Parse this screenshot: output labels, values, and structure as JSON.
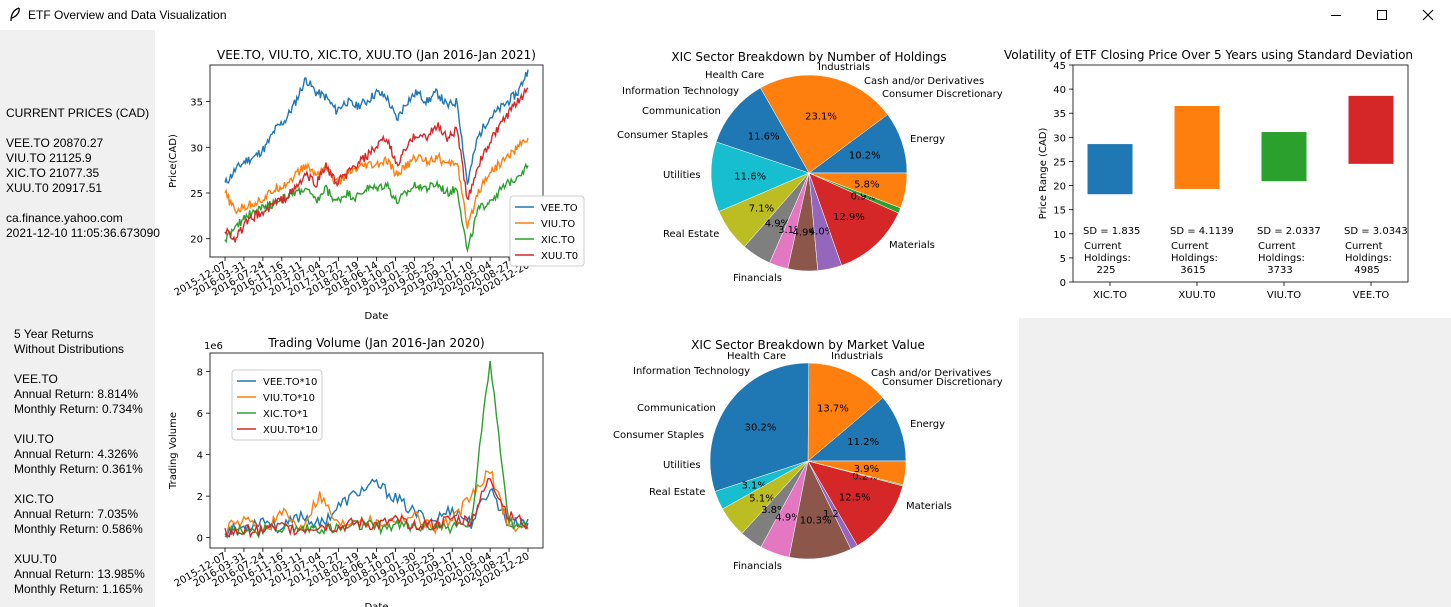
{
  "window": {
    "title": "ETF Overview and Data Visualization",
    "icons": [
      "feather-icon",
      "minimize-icon",
      "maximize-icon",
      "close-icon"
    ]
  },
  "sidebar": {
    "prices_header": "CURRENT PRICES (CAD)",
    "prices": [
      "VEE.TO 20870.27",
      "VIU.TO 21125.9",
      "XIC.TO 21077.35",
      "XUU.T0 20917.51"
    ],
    "source": "ca.finance.yahoo.com",
    "timestamp": "2021-12-10 11:05:36.673090",
    "returns_header_1": "5 Year Returns",
    "returns_header_2": "Without Distributions",
    "returns": [
      {
        "name": "VEE.TO",
        "annual": "Annual Return: 8.814%",
        "monthly": "Monthly Return: 0.734%"
      },
      {
        "name": "VIU.TO",
        "annual": "Annual Return: 4.326%",
        "monthly": "Monthly Return: 0.361%"
      },
      {
        "name": "XIC.TO",
        "annual": "Annual Return: 7.035%",
        "monthly": "Monthly Return: 0.586%"
      },
      {
        "name": "XUU.T0",
        "annual": "Annual Return: 13.985%",
        "monthly": "Monthly Return: 1.165%"
      }
    ]
  },
  "colors": {
    "blue": "#1f77b4",
    "orange": "#ff7f0e",
    "green": "#2ca02c",
    "red": "#d62728",
    "purple": "#9467bd",
    "brown": "#8c564b",
    "pink": "#e377c2",
    "gray": "#7f7f7f",
    "olive": "#bcbd22",
    "cyan": "#17becf"
  },
  "chart_data": [
    {
      "type": "line",
      "title": "VEE.TO, VIU.TO, XIC.TO, XUU.TO (Jan 2016-Jan 2021)",
      "xlabel": "Date",
      "ylabel": "Price(CAD)",
      "ylim": [
        18,
        39
      ],
      "yticks": [
        20,
        25,
        30,
        35
      ],
      "xticks": [
        "2015-12-07",
        "2016-03-31",
        "2016-07-24",
        "2016-11-16",
        "2017-03-11",
        "2017-07-04",
        "2017-10-27",
        "2018-02-19",
        "2018-06-14",
        "2018-10-07",
        "2019-01-30",
        "2019-05-25",
        "2019-09-17",
        "2020-01-10",
        "2020-05-04",
        "2020-08-27",
        "2020-12-20"
      ],
      "legend": "lower-right",
      "series": [
        {
          "name": "VEE.TO",
          "color": "#1f77b4",
          "values": [
            26,
            27.5,
            28.5,
            29,
            30,
            32,
            33,
            35,
            37.5,
            36,
            35.5,
            34,
            35,
            34.5,
            35,
            36,
            35.5,
            33,
            35,
            36,
            35,
            36,
            34.5,
            35,
            26,
            31,
            33,
            34,
            35,
            36,
            38.5
          ]
        },
        {
          "name": "VIU.TO",
          "color": "#ff7f0e",
          "values": [
            25,
            23,
            23.5,
            24,
            24.5,
            25.5,
            26,
            27,
            28,
            27,
            28,
            26,
            27,
            27.5,
            28,
            28,
            28.5,
            27,
            28,
            29,
            28.5,
            29,
            28,
            28.5,
            21,
            25,
            27,
            28,
            29,
            30,
            31
          ]
        },
        {
          "name": "XIC.TO",
          "color": "#2ca02c",
          "values": [
            20,
            21,
            22.5,
            23,
            23.5,
            24,
            24.5,
            25,
            25.5,
            24,
            25.5,
            24,
            25,
            24.5,
            25.5,
            25.5,
            26,
            24,
            25,
            26,
            25.5,
            26,
            25,
            25.5,
            18.5,
            23,
            24,
            25,
            26,
            27,
            28
          ]
        },
        {
          "name": "XUU.T0",
          "color": "#d62728",
          "values": [
            21,
            20,
            21.5,
            22.5,
            23,
            24,
            24.5,
            25.5,
            27,
            26,
            28,
            26,
            27,
            28,
            29,
            30,
            31,
            28,
            30,
            31.5,
            31,
            32.5,
            31,
            32,
            24,
            28,
            30,
            32,
            33.5,
            35,
            36.5
          ]
        }
      ]
    },
    {
      "type": "line",
      "title": "Trading Volume (Jan 2016-Jan 2020)",
      "xlabel": "Date",
      "ylabel": "Trading Volume",
      "scale_label": "1e6",
      "ylim": [
        -0.5,
        8.9
      ],
      "yticks": [
        0,
        2,
        4,
        6,
        8
      ],
      "xticks": [
        "2015-12-07",
        "2016-03-31",
        "2016-07-24",
        "2016-11-16",
        "2017-03-11",
        "2017-07-04",
        "2017-10-27",
        "2018-02-19",
        "2018-06-14",
        "2018-10-07",
        "2019-01-30",
        "2019-05-25",
        "2019-09-17",
        "2020-01-10",
        "2020-05-04",
        "2020-08-27",
        "2020-12-20"
      ],
      "legend": "upper-left",
      "series": [
        {
          "name": "VEE.TO*10",
          "color": "#1f77b4",
          "values": [
            0.3,
            0.5,
            0.9,
            0.4,
            1.1,
            0.6,
            1.5,
            2.2,
            2.6,
            1.9,
            1.2,
            0.8,
            1.4,
            0.7,
            2.4,
            0.6,
            0.9
          ]
        },
        {
          "name": "VIU.TO*10",
          "color": "#ff7f0e",
          "values": [
            0.4,
            0.8,
            0.3,
            1.2,
            0.5,
            2.1,
            0.6,
            1.0,
            0.7,
            0.9,
            1.1,
            0.5,
            0.8,
            2.0,
            3.2,
            0.6,
            0.4
          ]
        },
        {
          "name": "XIC.TO*1",
          "color": "#2ca02c",
          "values": [
            0.3,
            0.4,
            0.3,
            0.5,
            0.4,
            0.5,
            0.4,
            0.6,
            0.5,
            0.6,
            0.5,
            0.6,
            0.5,
            0.7,
            8.6,
            0.8,
            0.5
          ]
        },
        {
          "name": "XUU.T0*10",
          "color": "#d62728",
          "values": [
            0.2,
            0.3,
            0.4,
            0.5,
            0.4,
            0.6,
            0.5,
            0.7,
            0.6,
            0.8,
            0.7,
            0.6,
            0.9,
            0.8,
            2.9,
            1.0,
            0.7
          ]
        }
      ]
    },
    {
      "type": "pie",
      "title": "XIC Sector Breakdown by Number of Holdings",
      "slices": [
        {
          "label": "Energy",
          "value": 10.2,
          "pct": "10.2%",
          "color": "#1f77b4"
        },
        {
          "label": "Materials",
          "value": 23.1,
          "pct": "23.1%",
          "color": "#ff7f0e"
        },
        {
          "label": "Financials",
          "value": 11.6,
          "pct": "11.6%",
          "color": "#1f77b4"
        },
        {
          "label": "Real Estate",
          "value": 11.6,
          "pct": "11.6%",
          "color": "#17becf"
        },
        {
          "label": "Utilities",
          "value": 7.1,
          "pct": "7.1%",
          "color": "#bcbd22"
        },
        {
          "label": "Consumer Staples",
          "value": 4.9,
          "pct": "4.9%",
          "color": "#7f7f7f"
        },
        {
          "label": "Communication",
          "value": 3.1,
          "pct": "3.1%",
          "color": "#e377c2"
        },
        {
          "label": "Information Technology",
          "value": 4.9,
          "pct": "4.9%",
          "color": "#8c564b"
        },
        {
          "label": "Health Care",
          "value": 4.0,
          "pct": "4.0%",
          "color": "#9467bd"
        },
        {
          "label": "Industrials",
          "value": 12.9,
          "pct": "12.9%",
          "color": "#d62728"
        },
        {
          "label": "Cash and/or Derivatives",
          "value": 0.9,
          "pct": "0.9%",
          "color": "#2ca02c"
        },
        {
          "label": "Consumer Discretionary",
          "value": 5.8,
          "pct": "5.8%",
          "color": "#ff7f0e"
        }
      ]
    },
    {
      "type": "pie",
      "title": "XIC Sector Breakdown by Market Value",
      "slices": [
        {
          "label": "Energy",
          "value": 11.2,
          "pct": "11.2%",
          "color": "#1f77b4"
        },
        {
          "label": "Materials",
          "value": 13.7,
          "pct": "13.7%",
          "color": "#ff7f0e"
        },
        {
          "label": "Financials",
          "value": 30.2,
          "pct": "30.2%",
          "color": "#1f77b4"
        },
        {
          "label": "Real Estate",
          "value": 3.1,
          "pct": "3.1%",
          "color": "#17becf"
        },
        {
          "label": "Utilities",
          "value": 5.1,
          "pct": "5.1%",
          "color": "#bcbd22"
        },
        {
          "label": "Consumer Staples",
          "value": 3.8,
          "pct": "3.8%",
          "color": "#7f7f7f"
        },
        {
          "label": "Communication",
          "value": 4.9,
          "pct": "4.9%",
          "color": "#e377c2"
        },
        {
          "label": "Information Technology",
          "value": 10.3,
          "pct": "10.3%",
          "color": "#8c564b"
        },
        {
          "label": "Health Care",
          "value": 1.2,
          "pct": "1.2%",
          "color": "#9467bd"
        },
        {
          "label": "Industrials",
          "value": 12.5,
          "pct": "12.5%",
          "color": "#d62728"
        },
        {
          "label": "Cash and/or Derivatives",
          "value": 0.2,
          "pct": "0.2%",
          "color": "#2ca02c"
        },
        {
          "label": "Consumer Discretionary",
          "value": 3.9,
          "pct": "3.9%",
          "color": "#ff7f0e"
        }
      ]
    },
    {
      "type": "bar",
      "title": "Volatility of ETF Closing Price Over 5 Years using Standard Deviation",
      "ylabel": "Price Range (CAD)",
      "ylim": [
        0,
        45
      ],
      "yticks": [
        0,
        5,
        10,
        15,
        20,
        25,
        30,
        35,
        40,
        45
      ],
      "categories": [
        "XIC.TO",
        "XUU.T0",
        "VIU.TO",
        "VEE.TO"
      ],
      "series": [
        {
          "category": "XIC.TO",
          "low": 18.2,
          "high": 28.6,
          "color": "#1f77b4",
          "sd": "SD = 1.835",
          "holdings": [
            "Current",
            "Holdings:",
            "225"
          ]
        },
        {
          "category": "XUU.T0",
          "low": 19.3,
          "high": 36.5,
          "color": "#ff7f0e",
          "sd": "SD = 4.1139",
          "holdings": [
            "Current",
            "Holdings:",
            "3615"
          ]
        },
        {
          "category": "VIU.TO",
          "low": 20.9,
          "high": 31.1,
          "color": "#2ca02c",
          "sd": "SD = 2.0337",
          "holdings": [
            "Current",
            "Holdings:",
            "3733"
          ]
        },
        {
          "category": "VEE.TO",
          "low": 24.5,
          "high": 38.6,
          "color": "#d62728",
          "sd": "SD = 3.0343",
          "holdings": [
            "Current",
            "Holdings:",
            "4985"
          ]
        }
      ]
    }
  ]
}
